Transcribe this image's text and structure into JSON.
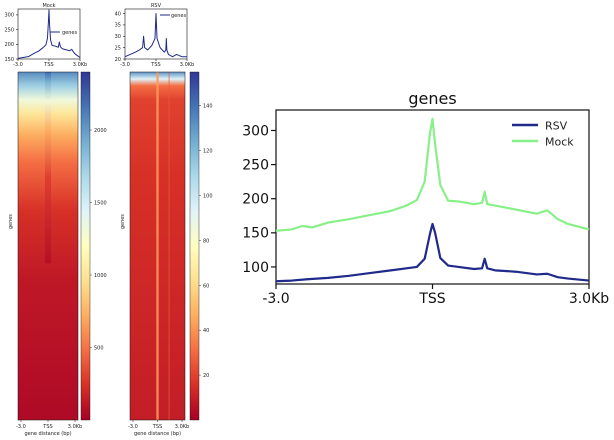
{
  "chart_data": [
    {
      "type": "line",
      "title": "Mock",
      "ylim": [
        150,
        320
      ],
      "yticks": [
        "300",
        "250",
        "200",
        "150"
      ],
      "xticks": [
        "-3.0",
        "TSS",
        "3.0Kb"
      ],
      "series": [
        {
          "name": "genes",
          "x": [
            -3.0,
            -2.0,
            -1.5,
            -1.0,
            -0.6,
            -0.3,
            -0.15,
            -0.05,
            0.0,
            0.05,
            0.15,
            0.3,
            0.6,
            0.9,
            1.0,
            1.1,
            1.2,
            1.3,
            1.6,
            2.0,
            2.2,
            2.4,
            2.6,
            3.0
          ],
          "y": [
            152,
            158,
            168,
            177,
            188,
            198,
            220,
            280,
            317,
            270,
            215,
            196,
            194,
            190,
            208,
            192,
            188,
            185,
            182,
            178,
            183,
            172,
            165,
            155
          ]
        }
      ],
      "color": "#1f2a8a"
    },
    {
      "type": "line",
      "title": "RSV",
      "ylim": [
        20,
        42
      ],
      "yticks": [
        "40",
        "35",
        "30",
        "25",
        "20"
      ],
      "xticks": [
        "-3.0",
        "TSS",
        "3.0Kb"
      ],
      "series": [
        {
          "name": "genes",
          "x": [
            -3.0,
            -2.5,
            -2.0,
            -1.6,
            -1.3,
            -1.2,
            -1.1,
            -0.8,
            -0.4,
            -0.1,
            0.0,
            0.1,
            0.4,
            0.8,
            0.95,
            1.0,
            1.05,
            1.2,
            1.6,
            2.0,
            2.5,
            3.0
          ],
          "y": [
            21,
            22,
            23,
            24,
            25,
            30,
            25,
            24,
            26,
            29,
            40,
            29,
            25,
            23,
            24,
            29,
            24,
            22,
            21,
            22,
            21,
            21
          ]
        }
      ],
      "color": "#1f2a8a"
    },
    {
      "type": "heatmap",
      "title": "",
      "xlabel": "gene distance (bp)",
      "ylabel": "genes",
      "xticks": [
        "-3.0",
        "TSS",
        "3.0Kb"
      ],
      "colorbar_ticks": [
        "2000",
        "1500",
        "1000",
        "500"
      ],
      "colorbar_range": [
        0,
        2400
      ],
      "colormap": "RdYlBu_r"
    },
    {
      "type": "heatmap",
      "title": "",
      "xlabel": "gene distance (bp)",
      "ylabel": "genes",
      "xticks": [
        "-3.0",
        "TSS",
        "3.0Kb"
      ],
      "colorbar_ticks": [
        "140",
        "120",
        "100",
        "80",
        "60",
        "40",
        "20"
      ],
      "colorbar_range": [
        0,
        155
      ],
      "colormap": "RdYlBu_r"
    },
    {
      "type": "line",
      "title": "genes",
      "ylim": [
        75,
        330
      ],
      "yticks": [
        "300",
        "250",
        "200",
        "150",
        "100"
      ],
      "xticks": [
        "-3.0",
        "TSS",
        "3.0Kb"
      ],
      "legend_position": "top-right",
      "series": [
        {
          "name": "RSV",
          "color": "#1f2a8a",
          "x": [
            -3.0,
            -2.7,
            -2.4,
            -2.0,
            -1.6,
            -1.2,
            -0.8,
            -0.5,
            -0.3,
            -0.15,
            -0.05,
            0.0,
            0.05,
            0.15,
            0.3,
            0.5,
            0.8,
            0.95,
            1.0,
            1.05,
            1.2,
            1.6,
            2.0,
            2.2,
            2.4,
            2.6,
            3.0
          ],
          "y": [
            79,
            80,
            82,
            84,
            87,
            91,
            95,
            98,
            100,
            112,
            148,
            163,
            150,
            113,
            102,
            100,
            97,
            98,
            112,
            98,
            95,
            93,
            89,
            90,
            85,
            83,
            80
          ]
        },
        {
          "name": "Mock",
          "color": "#88f088",
          "x": [
            -3.0,
            -2.7,
            -2.5,
            -2.3,
            -2.0,
            -1.6,
            -1.2,
            -0.8,
            -0.5,
            -0.3,
            -0.15,
            -0.05,
            0.0,
            0.05,
            0.15,
            0.3,
            0.5,
            0.8,
            0.95,
            1.0,
            1.05,
            1.2,
            1.6,
            2.0,
            2.2,
            2.4,
            2.6,
            3.0
          ],
          "y": [
            153,
            155,
            160,
            158,
            165,
            170,
            176,
            182,
            190,
            198,
            225,
            295,
            317,
            280,
            220,
            197,
            196,
            192,
            194,
            210,
            192,
            190,
            184,
            178,
            183,
            170,
            163,
            155
          ]
        }
      ]
    }
  ]
}
